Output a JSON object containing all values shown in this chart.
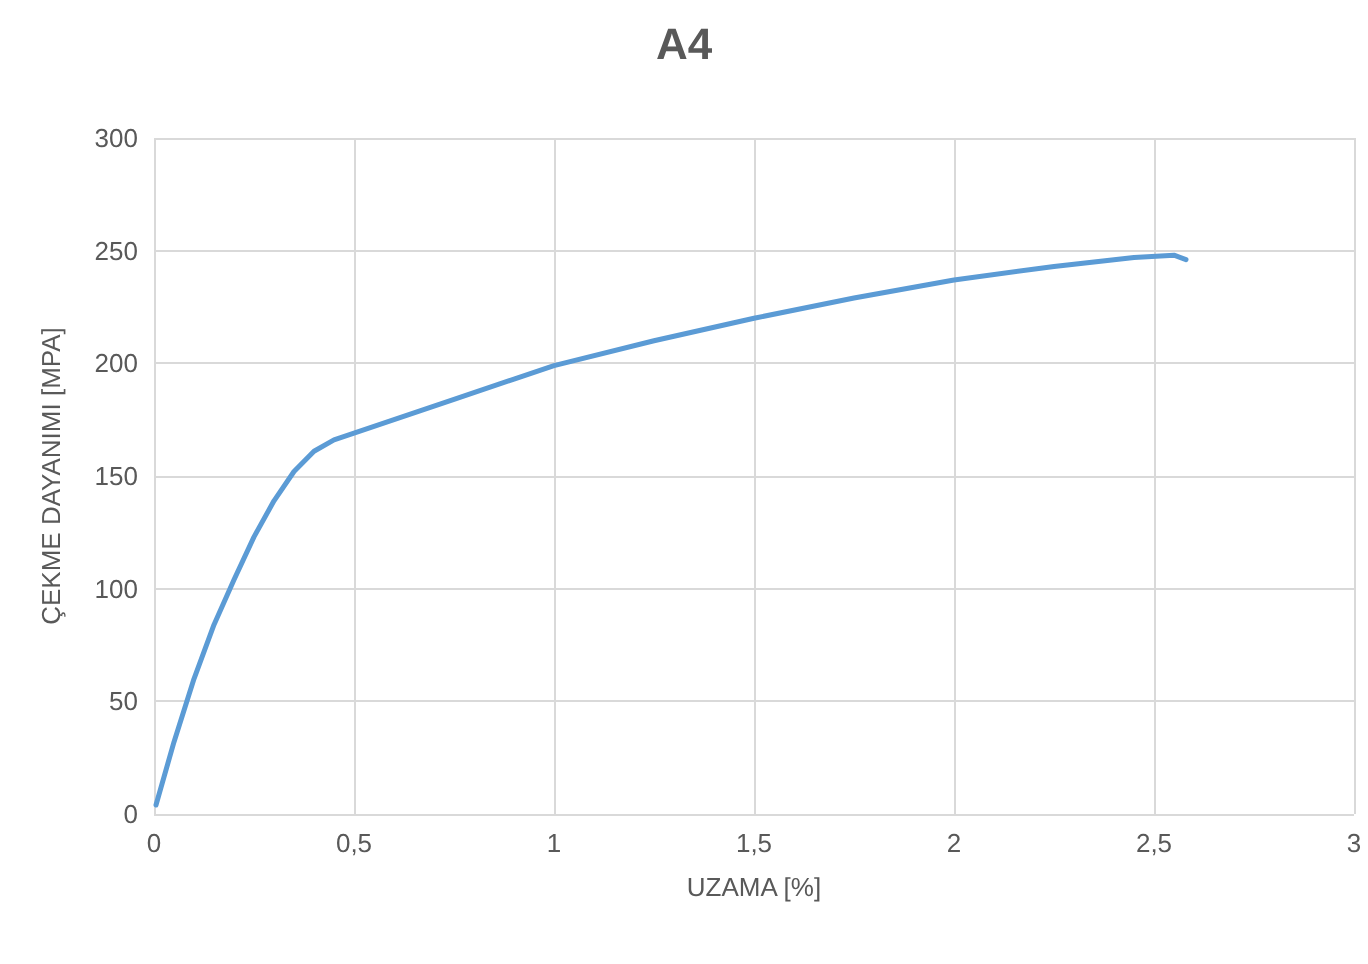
{
  "chart_data": {
    "type": "line",
    "title": "A4",
    "xlabel": "UZAMA [%]",
    "ylabel": "ÇEKME DAYANIMI [MPA]",
    "x": [
      0.005,
      0.05,
      0.1,
      0.15,
      0.2,
      0.25,
      0.3,
      0.35,
      0.4,
      0.45,
      0.5,
      0.6,
      0.75,
      0.9,
      1.0,
      1.25,
      1.5,
      1.75,
      2.0,
      2.25,
      2.45,
      2.55,
      2.58
    ],
    "series": [
      {
        "color": "#5b9bd5",
        "values": [
          4,
          32,
          60,
          84,
          104,
          123,
          139,
          152,
          161,
          166,
          169,
          175,
          184,
          193,
          199,
          210,
          220,
          229,
          237,
          243,
          247,
          248,
          246
        ]
      }
    ],
    "xlim": [
      0,
      3
    ],
    "xticks": [
      0,
      {
        "value": 0.5,
        "label": "0,5"
      },
      1,
      {
        "value": 1.5,
        "label": "1,5"
      },
      2,
      {
        "value": 2.5,
        "label": "2,5"
      },
      3
    ],
    "ylim": [
      0,
      300
    ],
    "yticks": [
      0,
      50,
      100,
      150,
      200,
      250,
      300
    ],
    "grid": true,
    "marker": "none",
    "line_style": "solid"
  }
}
